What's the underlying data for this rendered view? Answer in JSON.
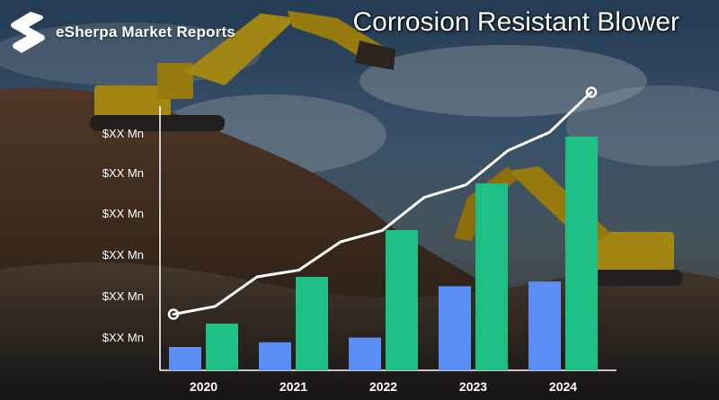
{
  "brand": {
    "name": "eSherpa Market Reports",
    "logo_icon": "esherpa-logo-icon"
  },
  "title": "Corrosion Resistant Blower",
  "colors": {
    "series_a": "#5b8ef5",
    "series_b": "#1dbf85",
    "line": "#ffffff",
    "axis": "#ffffff"
  },
  "chart_data": {
    "type": "bar",
    "categories": [
      "2020",
      "2021",
      "2022",
      "2023",
      "2024"
    ],
    "y_tick_labels": [
      "$XX Mn",
      "$XX Mn",
      "$XX Mn",
      "$XX Mn",
      "$XX Mn",
      "$XX Mn"
    ],
    "ylim": [
      0,
      100
    ],
    "series": [
      {
        "values": [
          10,
          12,
          14,
          36,
          38
        ]
      },
      {
        "values": [
          20,
          40,
          60,
          80,
          100
        ]
      }
    ],
    "trend_line": [
      24,
      40,
      55,
      74,
      94,
      119
    ],
    "grid": false,
    "legend": "none"
  }
}
